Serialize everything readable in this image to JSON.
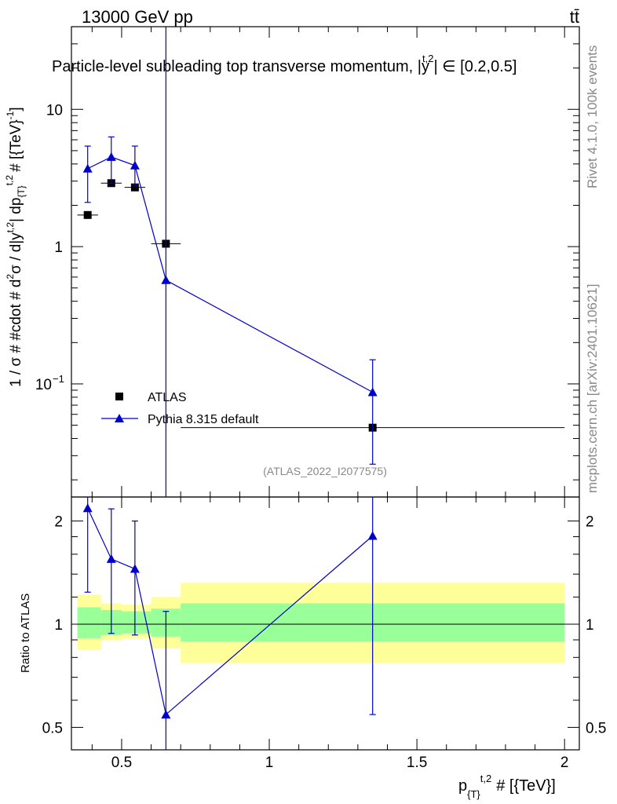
{
  "header": {
    "left": "13000 GeV pp",
    "right": "tt̄"
  },
  "side_labels": {
    "rivet": "Rivet 4.1.0,  100k events",
    "mcplots": "mcplots.cern.ch [arXiv:2401.10621]"
  },
  "chart_data": [
    {
      "type": "scatter",
      "title": "Particle-level subleading top transverse momentum, |y^{t,2}| ∈ [0.2,0.5]",
      "title_parts": {
        "main": "Particle-level subleading top transverse momentum, |",
        "y": "y",
        "sup": "t,2",
        "tail": "| ∈ [0.2,0.5]"
      },
      "analysis_id": "(ATLAS_2022_I2077575)",
      "ylabel": "1 / σ # #cdot # d²σ / d|y^{t,2}| dp_{T}^{t,2} # [{TeV}^{-1}]",
      "ylabel_parts": {
        "a": "1 / σ # #cdot # d",
        "b": "σ / d|y",
        "c": "| dp",
        "d": "# [{TeV}",
        "e": "]",
        "sq": "2",
        "ts": "t,2",
        "tsub": "{T}",
        "m1": "-1"
      },
      "yscale": "log",
      "ylim": [
        0.015,
        40
      ],
      "xlim": [
        0.33,
        2.05
      ],
      "y_ticks": [
        {
          "v": 0.1,
          "label": "10",
          "sup": "−1"
        },
        {
          "v": 1,
          "label": "1",
          "sup": ""
        },
        {
          "v": 10,
          "label": "10",
          "sup": ""
        }
      ],
      "legend": {
        "position": "bottom-left",
        "entries": [
          {
            "name": "ATLAS",
            "marker": "square",
            "color": "#000000"
          },
          {
            "name": "Pythia 8.315 default",
            "marker": "triangle",
            "color": "#0000cc"
          }
        ]
      },
      "series": [
        {
          "name": "ATLAS",
          "x": [
            0.385,
            0.465,
            0.545,
            0.65,
            1.35
          ],
          "y": [
            1.7,
            2.9,
            2.7,
            1.05,
            0.048
          ],
          "xerr": [
            0.035,
            0.035,
            0.035,
            0.05,
            0.65
          ]
        },
        {
          "name": "Pythia 8.315 default",
          "x": [
            0.385,
            0.465,
            0.545,
            0.65,
            1.35
          ],
          "y": [
            3.7,
            4.5,
            3.9,
            0.57,
            0.087
          ],
          "yerr_low": [
            2.1,
            2.9,
            2.8,
            0.005,
            0.026
          ],
          "yerr_high": [
            5.4,
            6.3,
            5.4,
            40,
            0.15
          ]
        }
      ]
    },
    {
      "type": "line",
      "ylabel": "Ratio to ATLAS",
      "xlabel": "p_{T}^{t,2} # [{TeV}]",
      "xlabel_parts": {
        "p": "p",
        "sub": "{T}",
        "sup": "t,2",
        "tail": "# [{TeV}]"
      },
      "yscale": "log",
      "ylim": [
        0.43,
        2.35
      ],
      "xlim": [
        0.33,
        2.05
      ],
      "x_ticks": [
        {
          "v": 0.5,
          "label": "0.5"
        },
        {
          "v": 1,
          "label": "1"
        },
        {
          "v": 1.5,
          "label": "1.5"
        },
        {
          "v": 2,
          "label": "2"
        }
      ],
      "y_ticks": [
        {
          "v": 0.5,
          "label": "0.5"
        },
        {
          "v": 1,
          "label": "1"
        },
        {
          "v": 2,
          "label": "2"
        }
      ],
      "reference_line": 1,
      "uncertainty_bands": [
        {
          "x_low": 0.35,
          "x_high": 0.43,
          "green": [
            0.91,
            1.12
          ],
          "yellow": [
            0.84,
            1.22
          ]
        },
        {
          "x_low": 0.43,
          "x_high": 0.5,
          "green": [
            0.93,
            1.1
          ],
          "yellow": [
            0.9,
            1.15
          ]
        },
        {
          "x_low": 0.5,
          "x_high": 0.6,
          "green": [
            0.94,
            1.09
          ],
          "yellow": [
            0.91,
            1.14
          ]
        },
        {
          "x_low": 0.6,
          "x_high": 0.7,
          "green": [
            0.92,
            1.11
          ],
          "yellow": [
            0.85,
            1.2
          ]
        },
        {
          "x_low": 0.7,
          "x_high": 2.0,
          "green": [
            0.89,
            1.15
          ],
          "yellow": [
            0.77,
            1.32
          ]
        }
      ],
      "series": [
        {
          "name": "Pythia 8.315 default",
          "x": [
            0.385,
            0.465,
            0.545,
            0.65,
            1.35
          ],
          "y": [
            2.18,
            1.55,
            1.45,
            0.545,
            1.81
          ],
          "yerr_low": [
            1.24,
            0.94,
            0.93,
            0.3,
            0.545
          ],
          "yerr_high": [
            3.2,
            2.17,
            2.0,
            1.09,
            3.2
          ]
        }
      ]
    }
  ]
}
